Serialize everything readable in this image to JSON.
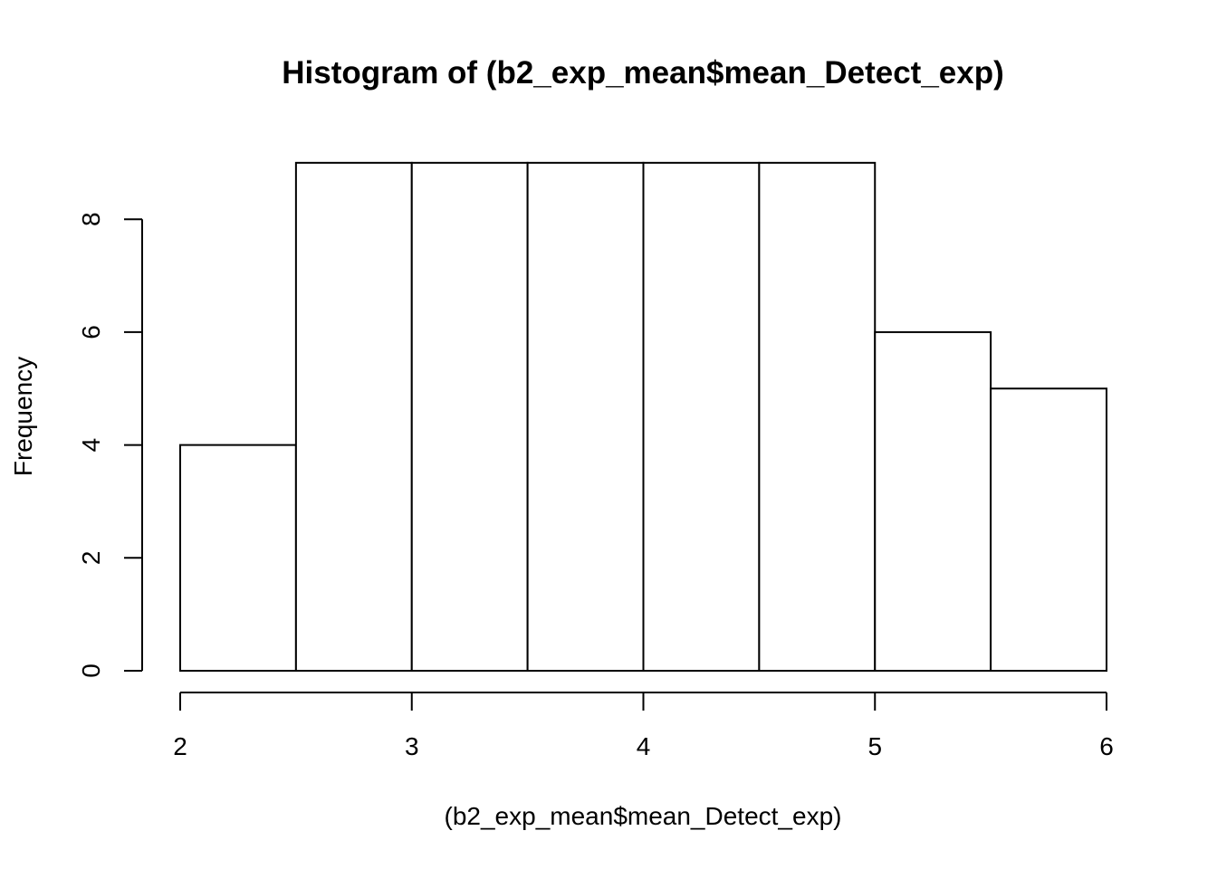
{
  "chart_data": {
    "type": "bar",
    "title": "Histogram of (b2_exp_mean$mean_Detect_exp)",
    "xlabel": "(b2_exp_mean$mean_Detect_exp)",
    "ylabel": "Frequency",
    "bins": [
      {
        "start": 2.0,
        "end": 2.5,
        "count": 4
      },
      {
        "start": 2.5,
        "end": 3.0,
        "count": 9
      },
      {
        "start": 3.0,
        "end": 3.5,
        "count": 9
      },
      {
        "start": 3.5,
        "end": 4.0,
        "count": 9
      },
      {
        "start": 4.0,
        "end": 4.5,
        "count": 9
      },
      {
        "start": 4.5,
        "end": 5.0,
        "count": 9
      },
      {
        "start": 5.0,
        "end": 5.5,
        "count": 6
      },
      {
        "start": 5.5,
        "end": 6.0,
        "count": 5
      }
    ],
    "xlim": [
      2,
      6
    ],
    "ylim": [
      0,
      9
    ],
    "xticks": [
      2,
      3,
      4,
      5,
      6
    ],
    "yticks": [
      0,
      2,
      4,
      6,
      8
    ],
    "grid": false,
    "legend": "none",
    "colors": {
      "bar_fill": "#ffffff",
      "bar_stroke": "#000000",
      "axis": "#000000"
    }
  }
}
